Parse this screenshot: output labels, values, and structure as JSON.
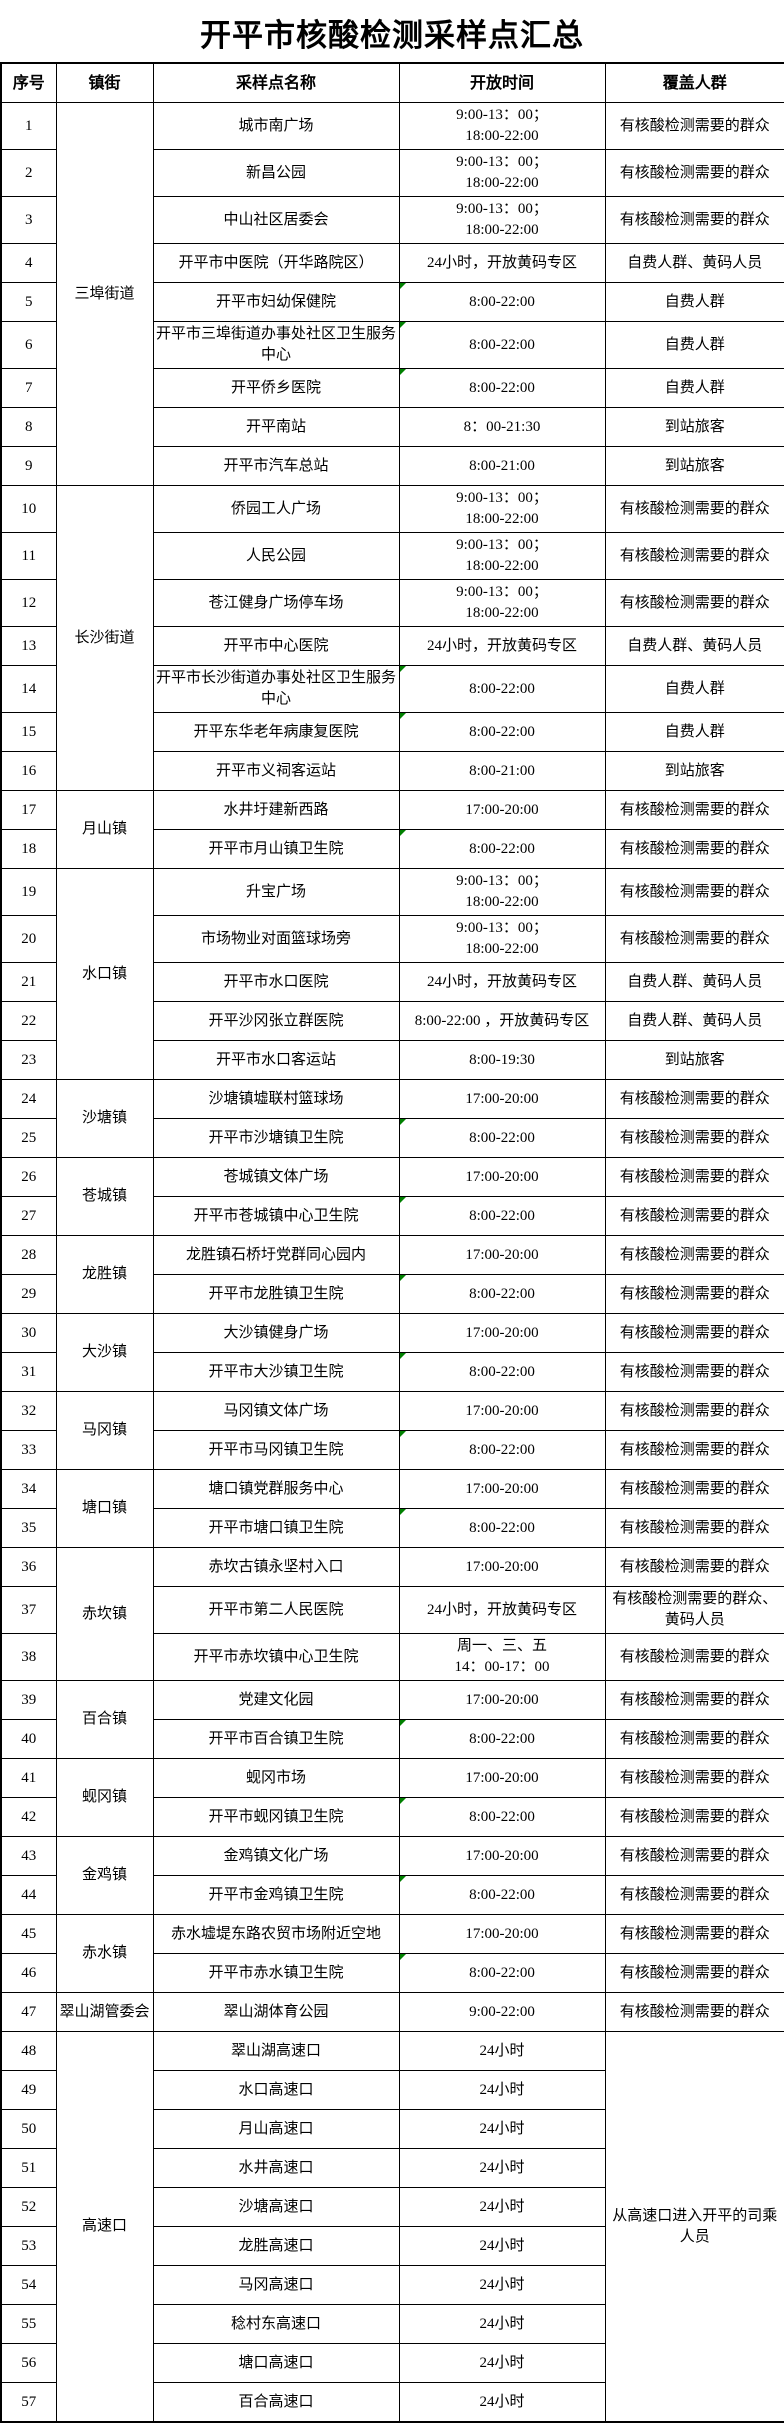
{
  "page_title": "开平市核酸检测采样点汇总",
  "accent_colors": {
    "border": "#000000",
    "comment_marker_green": "#008000",
    "background": "#ffffff"
  },
  "table": {
    "headers": [
      "序号",
      "镇街",
      "采样点名称",
      "开放时间",
      "覆盖人群"
    ],
    "groups": [
      {
        "town": "三埠街道",
        "items": [
          {
            "no": "1",
            "name": "城市南广场",
            "time": [
              "9:00-13：00；",
              "18:00-22:00"
            ],
            "coverage": "有核酸检测需要的群众",
            "marker": false
          },
          {
            "no": "2",
            "name": "新昌公园",
            "time": [
              "9:00-13：00；",
              "18:00-22:00"
            ],
            "coverage": "有核酸检测需要的群众",
            "marker": false
          },
          {
            "no": "3",
            "name": "中山社区居委会",
            "time": [
              "9:00-13：00；",
              "18:00-22:00"
            ],
            "coverage": "有核酸检测需要的群众",
            "marker": false
          },
          {
            "no": "4",
            "name": "开平市中医院（开华路院区）",
            "time": [
              "24小时，开放黄码专区"
            ],
            "coverage": "自费人群、黄码人员",
            "marker": false
          },
          {
            "no": "5",
            "name": "开平市妇幼保健院",
            "time": [
              "8:00-22:00"
            ],
            "coverage": "自费人群",
            "marker": true
          },
          {
            "no": "6",
            "name": "开平市三埠街道办事处社区卫生服务中心",
            "time": [
              "8:00-22:00"
            ],
            "coverage": "自费人群",
            "marker": true
          },
          {
            "no": "7",
            "name": "开平侨乡医院",
            "time": [
              "8:00-22:00"
            ],
            "coverage": "自费人群",
            "marker": true
          },
          {
            "no": "8",
            "name": "开平南站",
            "time": [
              "8：00-21:30"
            ],
            "coverage": "到站旅客",
            "marker": false
          },
          {
            "no": "9",
            "name": "开平市汽车总站",
            "time": [
              "8:00-21:00"
            ],
            "coverage": "到站旅客",
            "marker": false
          }
        ]
      },
      {
        "town": "长沙街道",
        "items": [
          {
            "no": "10",
            "name": "侨园工人广场",
            "time": [
              "9:00-13：00；",
              "18:00-22:00"
            ],
            "coverage": "有核酸检测需要的群众",
            "marker": false
          },
          {
            "no": "11",
            "name": "人民公园",
            "time": [
              "9:00-13：00；",
              "18:00-22:00"
            ],
            "coverage": "有核酸检测需要的群众",
            "marker": false
          },
          {
            "no": "12",
            "name": "苍江健身广场停车场",
            "time": [
              "9:00-13：00；",
              "18:00-22:00"
            ],
            "coverage": "有核酸检测需要的群众",
            "marker": false
          },
          {
            "no": "13",
            "name": "开平市中心医院",
            "time": [
              "24小时，开放黄码专区"
            ],
            "coverage": "自费人群、黄码人员",
            "marker": false
          },
          {
            "no": "14",
            "name": "开平市长沙街道办事处社区卫生服务中心",
            "time": [
              "8:00-22:00"
            ],
            "coverage": "自费人群",
            "marker": true
          },
          {
            "no": "15",
            "name": "开平东华老年病康复医院",
            "time": [
              "8:00-22:00"
            ],
            "coverage": "自费人群",
            "marker": true
          },
          {
            "no": "16",
            "name": "开平市义祠客运站",
            "time": [
              "8:00-21:00"
            ],
            "coverage": "到站旅客",
            "marker": false
          }
        ]
      },
      {
        "town": "月山镇",
        "items": [
          {
            "no": "17",
            "name": "水井圩建新西路",
            "time": [
              "17:00-20:00"
            ],
            "coverage": "有核酸检测需要的群众",
            "marker": false
          },
          {
            "no": "18",
            "name": "开平市月山镇卫生院",
            "time": [
              "8:00-22:00"
            ],
            "coverage": "有核酸检测需要的群众",
            "marker": true
          }
        ]
      },
      {
        "town": "水口镇",
        "items": [
          {
            "no": "19",
            "name": "升宝广场",
            "time": [
              "9:00-13：00；",
              "18:00-22:00"
            ],
            "coverage": "有核酸检测需要的群众",
            "marker": false
          },
          {
            "no": "20",
            "name": "市场物业对面篮球场旁",
            "time": [
              "9:00-13：00；",
              "18:00-22:00"
            ],
            "coverage": "有核酸检测需要的群众",
            "marker": false
          },
          {
            "no": "21",
            "name": "开平市水口医院",
            "time": [
              "24小时，开放黄码专区"
            ],
            "coverage": "自费人群、黄码人员",
            "marker": false
          },
          {
            "no": "22",
            "name": "开平沙冈张立群医院",
            "time": [
              "8:00-22:00 ，开放黄码专区"
            ],
            "coverage": "自费人群、黄码人员",
            "marker": false
          },
          {
            "no": "23",
            "name": "开平市水口客运站",
            "time": [
              "8:00-19:30"
            ],
            "coverage": "到站旅客",
            "marker": false
          }
        ]
      },
      {
        "town": "沙塘镇",
        "items": [
          {
            "no": "24",
            "name": "沙塘镇墟联村篮球场",
            "time": [
              "17:00-20:00"
            ],
            "coverage": "有核酸检测需要的群众",
            "marker": false
          },
          {
            "no": "25",
            "name": "开平市沙塘镇卫生院",
            "time": [
              "8:00-22:00"
            ],
            "coverage": "有核酸检测需要的群众",
            "marker": true
          }
        ]
      },
      {
        "town": "苍城镇",
        "items": [
          {
            "no": "26",
            "name": "苍城镇文体广场",
            "time": [
              "17:00-20:00"
            ],
            "coverage": "有核酸检测需要的群众",
            "marker": false
          },
          {
            "no": "27",
            "name": "开平市苍城镇中心卫生院",
            "time": [
              "8:00-22:00"
            ],
            "coverage": "有核酸检测需要的群众",
            "marker": true
          }
        ]
      },
      {
        "town": "龙胜镇",
        "items": [
          {
            "no": "28",
            "name": "龙胜镇石桥圩党群同心园内",
            "time": [
              "17:00-20:00"
            ],
            "coverage": "有核酸检测需要的群众",
            "marker": false
          },
          {
            "no": "29",
            "name": "开平市龙胜镇卫生院",
            "time": [
              "8:00-22:00"
            ],
            "coverage": "有核酸检测需要的群众",
            "marker": true
          }
        ]
      },
      {
        "town": "大沙镇",
        "items": [
          {
            "no": "30",
            "name": "大沙镇健身广场",
            "time": [
              "17:00-20:00"
            ],
            "coverage": "有核酸检测需要的群众",
            "marker": false
          },
          {
            "no": "31",
            "name": "开平市大沙镇卫生院",
            "time": [
              "8:00-22:00"
            ],
            "coverage": "有核酸检测需要的群众",
            "marker": true
          }
        ]
      },
      {
        "town": "马冈镇",
        "items": [
          {
            "no": "32",
            "name": "马冈镇文体广场",
            "time": [
              "17:00-20:00"
            ],
            "coverage": "有核酸检测需要的群众",
            "marker": false
          },
          {
            "no": "33",
            "name": "开平市马冈镇卫生院",
            "time": [
              "8:00-22:00"
            ],
            "coverage": "有核酸检测需要的群众",
            "marker": true
          }
        ]
      },
      {
        "town": "塘口镇",
        "items": [
          {
            "no": "34",
            "name": "塘口镇党群服务中心",
            "time": [
              "17:00-20:00"
            ],
            "coverage": "有核酸检测需要的群众",
            "marker": false
          },
          {
            "no": "35",
            "name": "开平市塘口镇卫生院",
            "time": [
              "8:00-22:00"
            ],
            "coverage": "有核酸检测需要的群众",
            "marker": true
          }
        ]
      },
      {
        "town": "赤坎镇",
        "items": [
          {
            "no": "36",
            "name": "赤坎古镇永坚村入口",
            "time": [
              "17:00-20:00"
            ],
            "coverage": "有核酸检测需要的群众",
            "marker": false
          },
          {
            "no": "37",
            "name": "开平市第二人民医院",
            "time": [
              "24小时，开放黄码专区"
            ],
            "coverage": "有核酸检测需要的群众、黄码人员",
            "marker": false
          },
          {
            "no": "38",
            "name": "开平市赤坎镇中心卫生院",
            "time": [
              "周一、三、五",
              "14：00-17：00"
            ],
            "coverage": "有核酸检测需要的群众",
            "marker": false
          }
        ]
      },
      {
        "town": "百合镇",
        "items": [
          {
            "no": "39",
            "name": "党建文化园",
            "time": [
              "17:00-20:00"
            ],
            "coverage": "有核酸检测需要的群众",
            "marker": false
          },
          {
            "no": "40",
            "name": "开平市百合镇卫生院",
            "time": [
              "8:00-22:00"
            ],
            "coverage": "有核酸检测需要的群众",
            "marker": true
          }
        ]
      },
      {
        "town": "蚬冈镇",
        "items": [
          {
            "no": "41",
            "name": "蚬冈市场",
            "time": [
              "17:00-20:00"
            ],
            "coverage": "有核酸检测需要的群众",
            "marker": false
          },
          {
            "no": "42",
            "name": "开平市蚬冈镇卫生院",
            "time": [
              "8:00-22:00"
            ],
            "coverage": "有核酸检测需要的群众",
            "marker": true
          }
        ]
      },
      {
        "town": "金鸡镇",
        "items": [
          {
            "no": "43",
            "name": "金鸡镇文化广场",
            "time": [
              "17:00-20:00"
            ],
            "coverage": "有核酸检测需要的群众",
            "marker": false
          },
          {
            "no": "44",
            "name": "开平市金鸡镇卫生院",
            "time": [
              "8:00-22:00"
            ],
            "coverage": "有核酸检测需要的群众",
            "marker": true
          }
        ]
      },
      {
        "town": "赤水镇",
        "items": [
          {
            "no": "45",
            "name": "赤水墟堤东路农贸市场附近空地",
            "time": [
              "17:00-20:00"
            ],
            "coverage": "有核酸检测需要的群众",
            "marker": false
          },
          {
            "no": "46",
            "name": "开平市赤水镇卫生院",
            "time": [
              "8:00-22:00"
            ],
            "coverage": "有核酸检测需要的群众",
            "marker": true
          }
        ]
      },
      {
        "town": "翠山湖管委会",
        "items": [
          {
            "no": "47",
            "name": "翠山湖体育公园",
            "time": [
              "9:00-22:00"
            ],
            "coverage": "有核酸检测需要的群众",
            "marker": false
          }
        ]
      },
      {
        "town": "高速口",
        "coverage_merged": "从高速口进入开平的司乘人员",
        "items": [
          {
            "no": "48",
            "name": "翠山湖高速口",
            "time": [
              "24小时"
            ],
            "marker": false
          },
          {
            "no": "49",
            "name": "水口高速口",
            "time": [
              "24小时"
            ],
            "marker": false
          },
          {
            "no": "50",
            "name": "月山高速口",
            "time": [
              "24小时"
            ],
            "marker": false
          },
          {
            "no": "51",
            "name": "水井高速口",
            "time": [
              "24小时"
            ],
            "marker": false
          },
          {
            "no": "52",
            "name": "沙塘高速口",
            "time": [
              "24小时"
            ],
            "marker": false
          },
          {
            "no": "53",
            "name": "龙胜高速口",
            "time": [
              "24小时"
            ],
            "marker": false
          },
          {
            "no": "54",
            "name": "马冈高速口",
            "time": [
              "24小时"
            ],
            "marker": false
          },
          {
            "no": "55",
            "name": "稔村东高速口",
            "time": [
              "24小时"
            ],
            "marker": false
          },
          {
            "no": "56",
            "name": "塘口高速口",
            "time": [
              "24小时"
            ],
            "marker": false
          },
          {
            "no": "57",
            "name": "百合高速口",
            "time": [
              "24小时"
            ],
            "marker": false
          }
        ]
      }
    ]
  }
}
